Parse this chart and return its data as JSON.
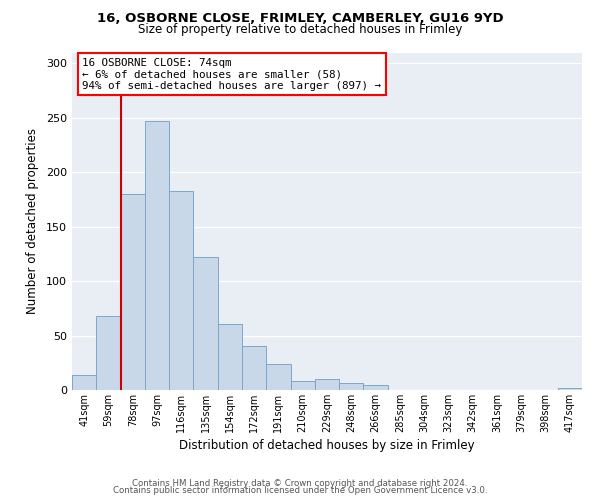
{
  "title1": "16, OSBORNE CLOSE, FRIMLEY, CAMBERLEY, GU16 9YD",
  "title2": "Size of property relative to detached houses in Frimley",
  "xlabel": "Distribution of detached houses by size in Frimley",
  "ylabel": "Number of detached properties",
  "bar_color": "#c8d8e8",
  "bar_edge_color": "#7aa8cc",
  "bg_color": "#e8eef4",
  "grid_color": "#ffffff",
  "categories": [
    "41sqm",
    "59sqm",
    "78sqm",
    "97sqm",
    "116sqm",
    "135sqm",
    "154sqm",
    "172sqm",
    "191sqm",
    "210sqm",
    "229sqm",
    "248sqm",
    "266sqm",
    "285sqm",
    "304sqm",
    "323sqm",
    "342sqm",
    "361sqm",
    "379sqm",
    "398sqm",
    "417sqm"
  ],
  "values": [
    14,
    68,
    180,
    247,
    183,
    122,
    61,
    40,
    24,
    8,
    10,
    6,
    5,
    0,
    0,
    0,
    0,
    0,
    0,
    0,
    2
  ],
  "vline_color": "#cc0000",
  "vline_x": 1.5,
  "annotation_title": "16 OSBORNE CLOSE: 74sqm",
  "annotation_line1": "← 6% of detached houses are smaller (58)",
  "annotation_line2": "94% of semi-detached houses are larger (897) →",
  "annotation_box_color": "white",
  "annotation_box_edge_color": "red",
  "ylim": [
    0,
    310
  ],
  "yticks": [
    0,
    50,
    100,
    150,
    200,
    250,
    300
  ],
  "footer1": "Contains HM Land Registry data © Crown copyright and database right 2024.",
  "footer2": "Contains public sector information licensed under the Open Government Licence v3.0."
}
